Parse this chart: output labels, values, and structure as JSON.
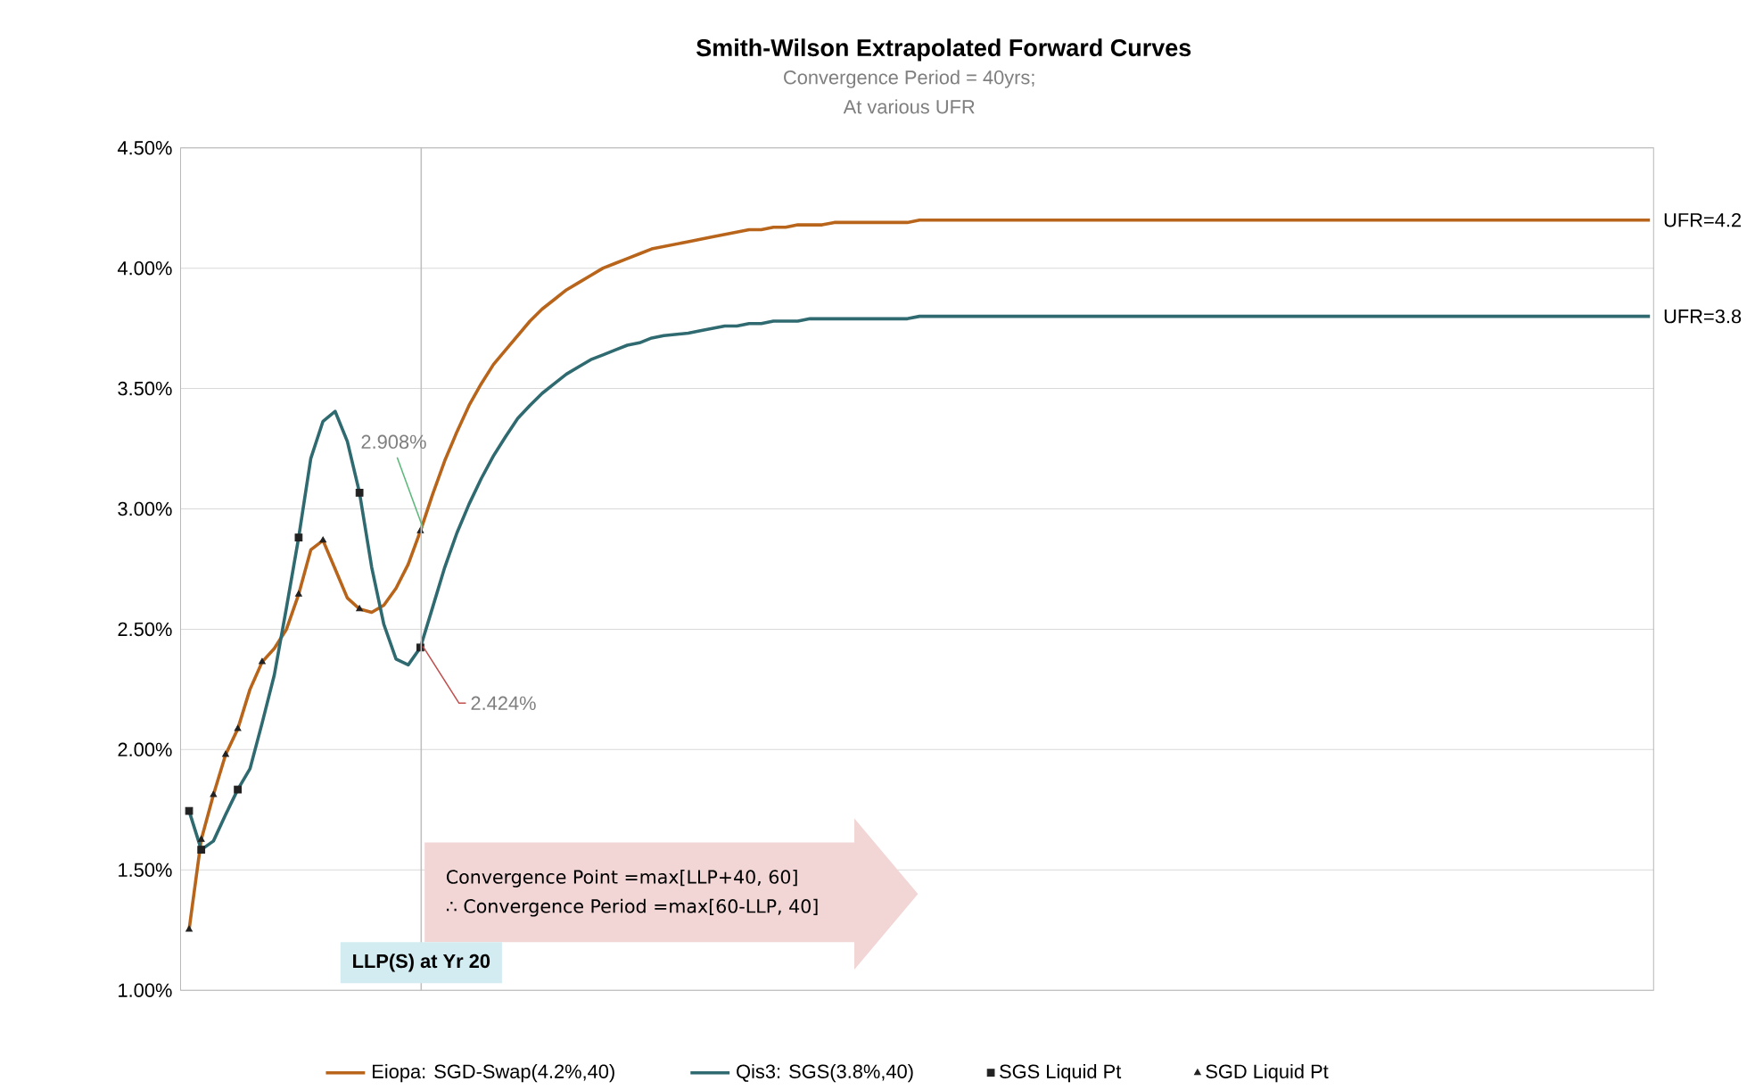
{
  "chart_data": {
    "type": "line",
    "title": "Smith-Wilson Extrapolated Forward Curves",
    "subtitle": "Convergence Period = 40yrs;",
    "categories": [
      null,
      null,
      null,
      null,
      null,
      null,
      null,
      null,
      null,
      null,
      null,
      null,
      null,
      null,
      null,
      null,
      null,
      null,
      null,
      null,
      null,
      null,
      null,
      null,
      null,
      null,
      null,
      null,
      null,
      null,
      null,
      null,
      null,
      null,
      null,
      null,
      null,
      null,
      null,
      null,
      null,
      null,
      null,
      null,
      null,
      null,
      null,
      null,
      null,
      null,
      null,
      null,
      null,
      null,
      null,
      null,
      null,
      null,
      null,
      null,
      null,
      null,
      null,
      null,
      null,
      null,
      null,
      null,
      null,
      null,
      null,
      null,
      null,
      null,
      null,
      null,
      null,
      null,
      null,
      null,
      null,
      null,
      null,
      null,
      null,
      null,
      null,
      null,
      null,
      null,
      null,
      null,
      null,
      null,
      null,
      null,
      null,
      null,
      null,
      null,
      null,
      null,
      null,
      null,
      null,
      null,
      null,
      null,
      null,
      null,
      null,
      null,
      null,
      null,
      null,
      null,
      null,
      null,
      null,
      null,
      null
    ],
    "series": [
      {
        "name": "Eiopa: SGD-Swap(4.2%,40)",
        "color": "#b8651b",
        "values": [
          1.252,
          1.626,
          1.812,
          1.979,
          2.086,
          2.25,
          2.364,
          2.42,
          2.5,
          2.645,
          2.83,
          2.869,
          2.75,
          2.63,
          2.584,
          2.57,
          2.6,
          2.67,
          2.77,
          2.908,
          3.06,
          3.2,
          3.32,
          3.43,
          3.52,
          3.6,
          3.66,
          3.72,
          3.78,
          3.83,
          3.87,
          3.91,
          3.94,
          3.97,
          4.0,
          4.02,
          4.04,
          4.06,
          4.08,
          4.09,
          4.1,
          4.11,
          4.12,
          4.13,
          4.14,
          4.15,
          4.16,
          4.16,
          4.17,
          4.17,
          4.18,
          4.18,
          4.18,
          4.19,
          4.19,
          4.19,
          4.19,
          4.19,
          4.19,
          4.19,
          4.2,
          4.2,
          4.2,
          4.2,
          4.2,
          4.2,
          4.2,
          4.2,
          4.2,
          4.2,
          4.2,
          4.2,
          4.2,
          4.2,
          4.2,
          4.2,
          4.2,
          4.2,
          4.2,
          4.2,
          4.2,
          4.2,
          4.2,
          4.2,
          4.2,
          4.2,
          4.2,
          4.2,
          4.2,
          4.2,
          4.2,
          4.2,
          4.2,
          4.2,
          4.2,
          4.2,
          4.2,
          4.2,
          4.2,
          4.2,
          4.2,
          4.2,
          4.2,
          4.2,
          4.2,
          4.2,
          4.2,
          4.2,
          4.2,
          4.2,
          4.2,
          4.2,
          4.2,
          4.2,
          4.2,
          4.2,
          4.2,
          4.2,
          4.2,
          4.2,
          4.2
        ]
      },
      {
        "name": "Qis3: SGS(3.8%,40)",
        "color": "#2f6a70",
        "values": [
          1.745,
          1.584,
          1.62,
          1.73,
          1.834,
          1.92,
          2.11,
          2.31,
          2.59,
          2.881,
          3.21,
          3.364,
          3.405,
          3.28,
          3.067,
          2.757,
          2.52,
          2.376,
          2.352,
          2.424,
          2.59,
          2.757,
          2.9,
          3.02,
          3.126,
          3.22,
          3.3,
          3.376,
          3.43,
          3.48,
          3.52,
          3.56,
          3.59,
          3.62,
          3.64,
          3.66,
          3.68,
          3.69,
          3.71,
          3.72,
          3.725,
          3.73,
          3.74,
          3.75,
          3.76,
          3.76,
          3.77,
          3.77,
          3.78,
          3.78,
          3.78,
          3.79,
          3.79,
          3.79,
          3.79,
          3.79,
          3.79,
          3.79,
          3.79,
          3.79,
          3.8,
          3.8,
          3.8,
          3.8,
          3.8,
          3.8,
          3.8,
          3.8,
          3.8,
          3.8,
          3.8,
          3.8,
          3.8,
          3.8,
          3.8,
          3.8,
          3.8,
          3.8,
          3.8,
          3.8,
          3.8,
          3.8,
          3.8,
          3.8,
          3.8,
          3.8,
          3.8,
          3.8,
          3.8,
          3.8,
          3.8,
          3.8,
          3.8,
          3.8,
          3.8,
          3.8,
          3.8,
          3.8,
          3.8,
          3.8,
          3.8,
          3.8,
          3.8,
          3.8,
          3.8,
          3.8,
          3.8,
          3.8,
          3.8,
          3.8,
          3.8,
          3.8,
          3.8,
          3.8,
          3.8,
          3.8,
          3.8,
          3.8,
          3.8,
          3.8,
          3.8
        ]
      },
      {
        "name": "SGS Liquid Pt",
        "type": "scatter",
        "color": "#222222",
        "marker": "square",
        "values": [
          1.745,
          1.584,
          null,
          null,
          1.834,
          null,
          null,
          null,
          null,
          2.881,
          null,
          null,
          null,
          null,
          3.067,
          null,
          null,
          null,
          null,
          2.424,
          null,
          null,
          null,
          null,
          null,
          null,
          null,
          null,
          null,
          null,
          null,
          null,
          null,
          null,
          null,
          null,
          null,
          null,
          null,
          null,
          null,
          null,
          null,
          null,
          null,
          null,
          null,
          null,
          null,
          null,
          null,
          null,
          null,
          null,
          null,
          null,
          null,
          null,
          null,
          null,
          null,
          null,
          null,
          null,
          null,
          null,
          null,
          null,
          null,
          null,
          null,
          null,
          null,
          null,
          null,
          null,
          null,
          null,
          null,
          null,
          null,
          null,
          null,
          null,
          null,
          null,
          null,
          null,
          null,
          null,
          null,
          null,
          null,
          null,
          null,
          null,
          null,
          null,
          null,
          null,
          null,
          null,
          null,
          null,
          null,
          null,
          null,
          null,
          null,
          null,
          null,
          null,
          null,
          null,
          null,
          null,
          null,
          null,
          null,
          null,
          null
        ]
      },
      {
        "name": "SGD Liquid Pt",
        "type": "scatter",
        "color": "#222222",
        "marker": "triangle",
        "values": [
          1.252,
          1.626,
          1.812,
          1.979,
          2.086,
          null,
          2.364,
          null,
          null,
          2.645,
          null,
          2.869,
          null,
          null,
          2.584,
          null,
          null,
          null,
          null,
          2.908,
          null,
          null,
          null,
          null,
          null,
          null,
          null,
          null,
          null,
          null,
          null,
          null,
          null,
          null,
          null,
          null,
          null,
          null,
          null,
          null,
          null,
          null,
          null,
          null,
          null,
          null,
          null,
          null,
          null,
          null,
          null,
          null,
          null,
          null,
          null,
          null,
          null,
          null,
          null,
          null,
          null,
          null,
          null,
          null,
          null,
          null,
          null,
          null,
          null,
          null,
          null,
          null,
          null,
          null,
          null,
          null,
          null,
          null,
          null,
          null,
          null,
          null,
          null,
          null,
          null,
          null,
          null,
          null,
          null,
          null,
          null,
          null,
          null,
          null,
          null,
          null,
          null,
          null,
          null,
          null,
          null,
          null,
          null,
          null,
          null,
          null,
          null,
          null,
          null,
          null,
          null,
          null,
          null,
          null,
          null,
          null,
          null,
          null,
          null,
          null,
          null
        ]
      }
    ],
    "ylim": [
      1,
      4.5
    ],
    "yticks": [
      {
        "value": 1,
        "label": "1.00%"
      },
      {
        "value": 1.5,
        "label": "1.50%"
      },
      {
        "value": 2,
        "label": "2.00%"
      },
      {
        "value": 2.5,
        "label": "2.50%"
      },
      {
        "value": 3,
        "label": "3.00%"
      },
      {
        "value": 3.5,
        "label": "3.50%"
      },
      {
        "value": 4,
        "label": "4.00%"
      },
      {
        "value": 4.5,
        "label": "4.50%"
      }
    ],
    "grid": "y",
    "legend": "bottom",
    "annotations": [
      "At various UFR",
      "LLP(S) at Yr 20",
      "Convergence Point =max[LLP+40, 60]",
      "∴ Convergence Period =max[60-LLP, 40]",
      "2.908%",
      "2.424%",
      "UFR=4.2",
      "UFR=3.8"
    ]
  }
}
